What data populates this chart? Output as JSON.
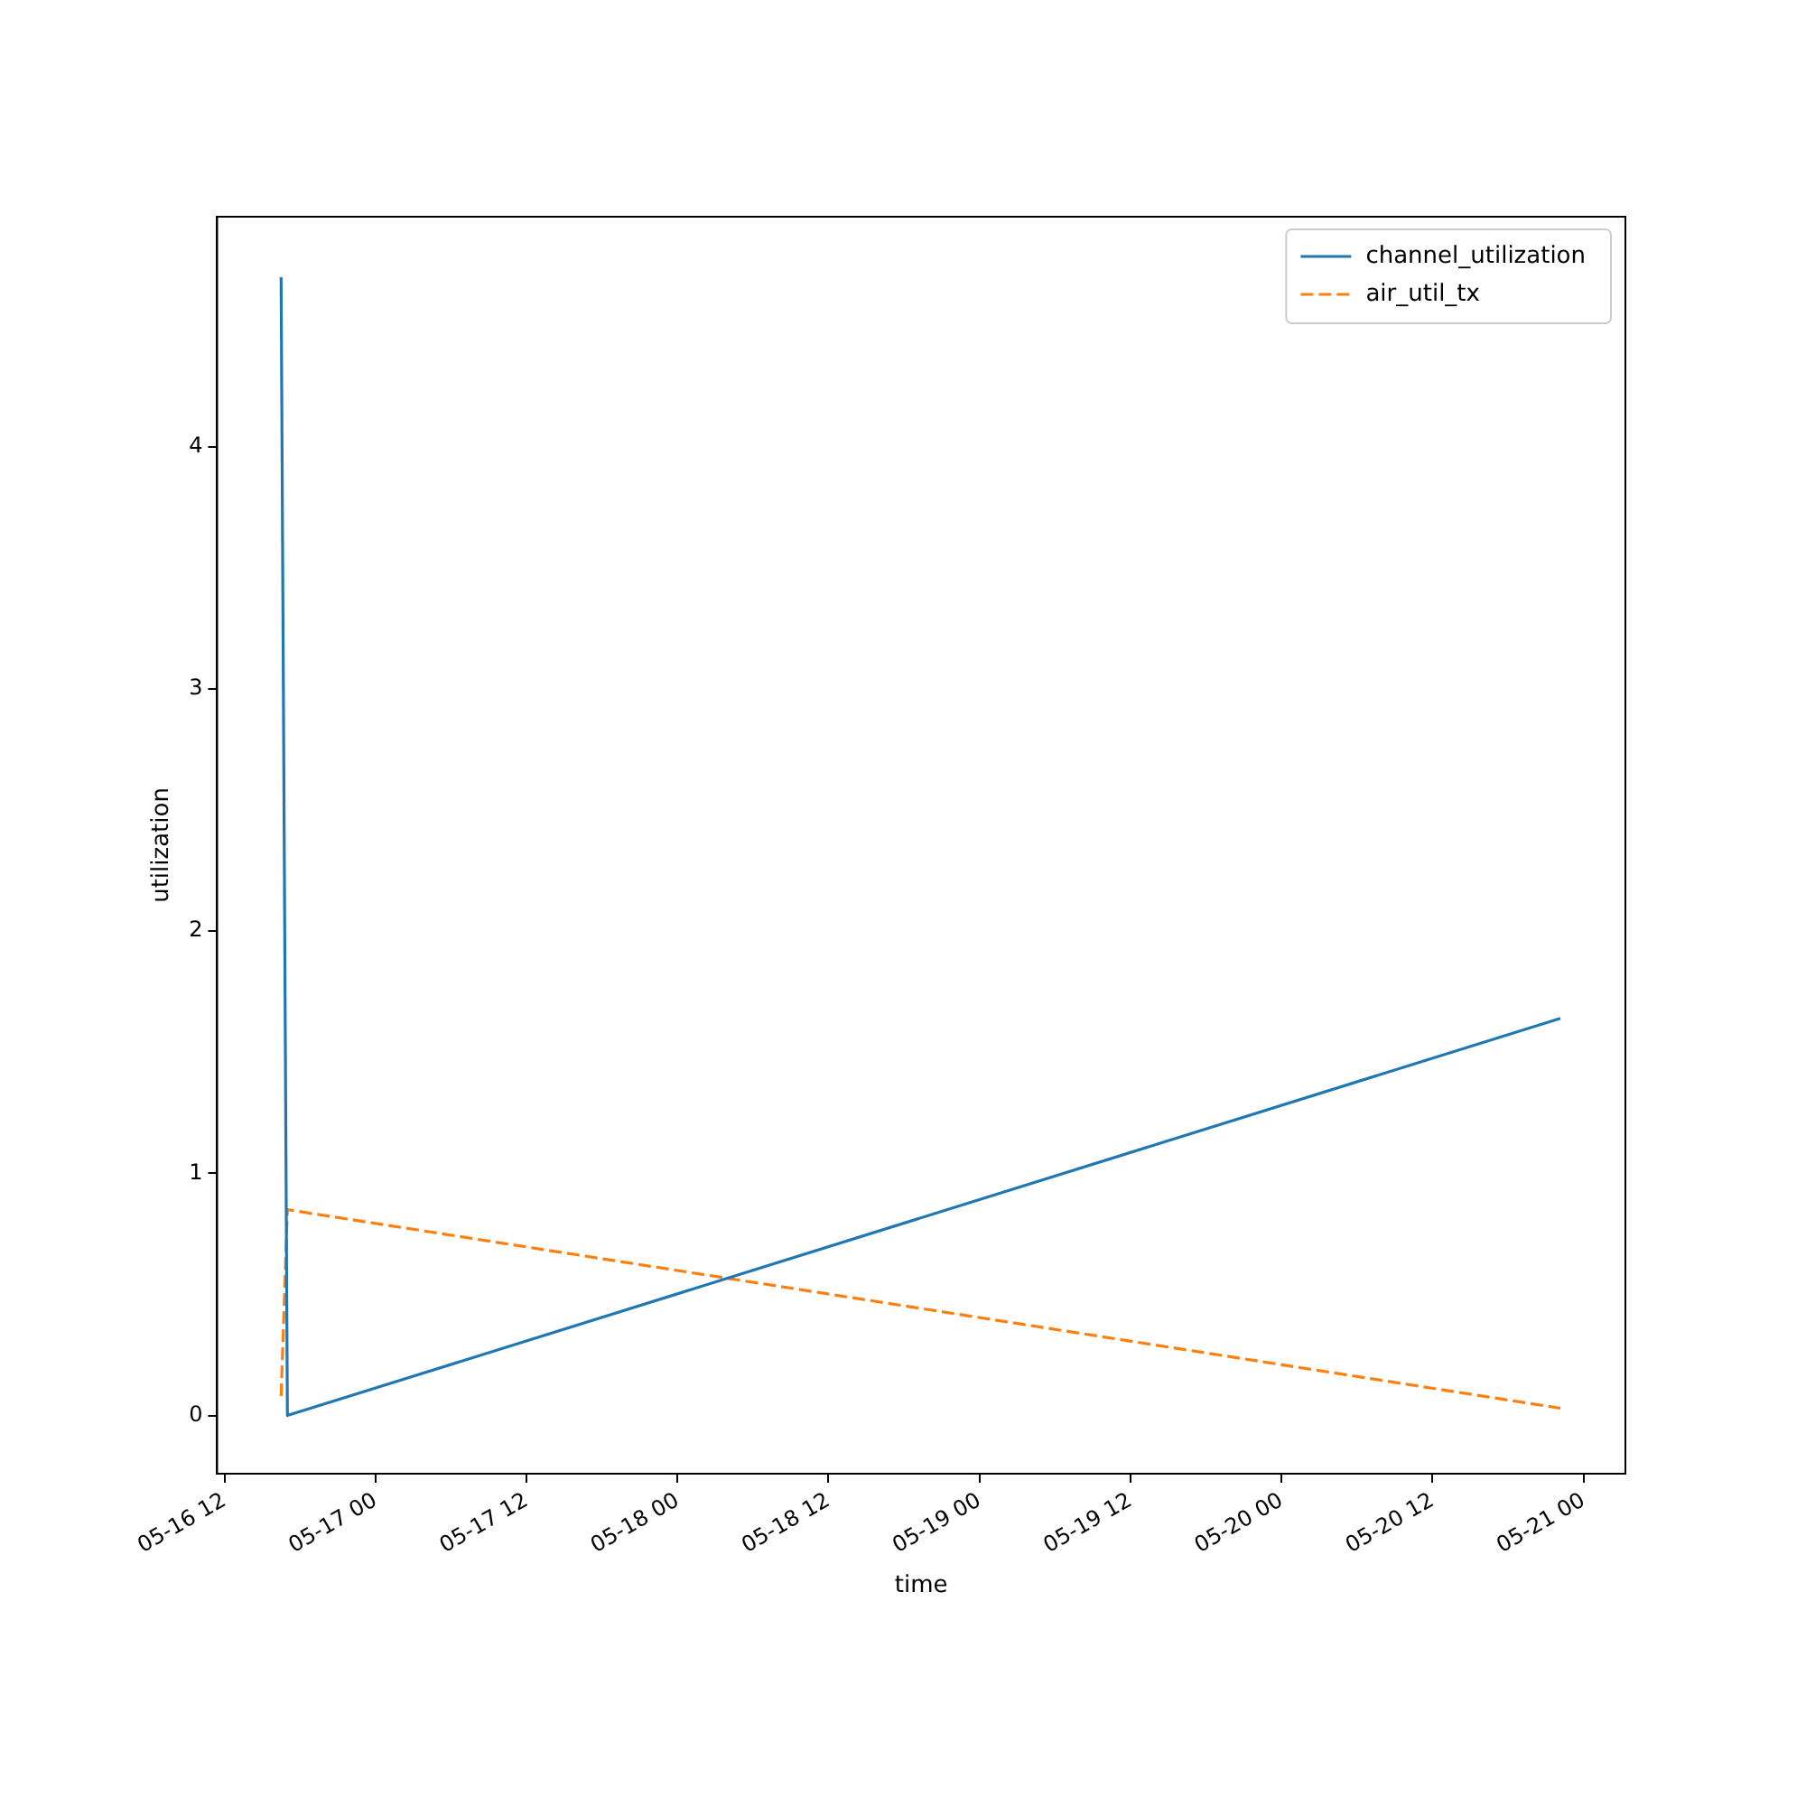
{
  "chart_data": {
    "type": "line",
    "xlabel": "time",
    "ylabel": "utilization",
    "x": [
      "--05-16T16:30",
      "--05-16T17:00",
      "--05-20T22:10"
    ],
    "series": [
      {
        "name": "channel_utilization",
        "color": "#1f77b4",
        "line_style": "solid",
        "values": [
          4.7,
          0,
          1.64
        ]
      },
      {
        "name": "air_util_tx",
        "color": "#ff7f0e",
        "line_style": "dashed",
        "values": [
          0.08,
          0.85,
          0.03
        ]
      }
    ],
    "xlim": [
      "--05-16T11:25",
      "--05-21T03:20"
    ],
    "xticks": [
      {
        "value": "--05-16T12:00",
        "label": "05-16 12"
      },
      {
        "value": "--05-17T00:00",
        "label": "05-17 00"
      },
      {
        "value": "--05-17T12:00",
        "label": "05-17 12"
      },
      {
        "value": "--05-18T00:00",
        "label": "05-18 00"
      },
      {
        "value": "--05-18T12:00",
        "label": "05-18 12"
      },
      {
        "value": "--05-19T00:00",
        "label": "05-19 00"
      },
      {
        "value": "--05-19T12:00",
        "label": "05-19 12"
      },
      {
        "value": "--05-20T00:00",
        "label": "05-20 00"
      },
      {
        "value": "--05-20T12:00",
        "label": "05-20 12"
      },
      {
        "value": "--05-21T00:00",
        "label": "05-21 00"
      }
    ],
    "ylim": [
      -0.24,
      4.95
    ],
    "yticks": [
      0,
      1,
      2,
      3,
      4
    ],
    "grid": false,
    "legend": "top right",
    "marker": "none"
  }
}
